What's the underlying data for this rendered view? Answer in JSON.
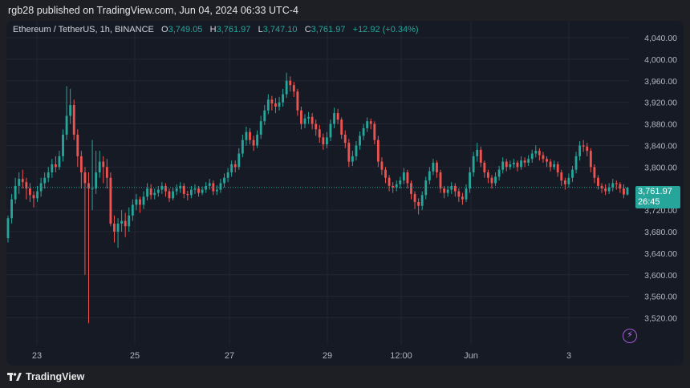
{
  "header": {
    "published": "rgb28 published on TradingView.com, Jun 04, 2024 06:33 UTC-4"
  },
  "legend": {
    "symbol": "Ethereum / TetherUS, 1h, BINANCE",
    "o_label": "O",
    "o_value": "3,749.05",
    "h_label": "H",
    "h_value": "3,761.97",
    "l_label": "L",
    "l_value": "3,747.10",
    "c_label": "C",
    "c_value": "3,761.97",
    "change": "+12.92 (+0.34%)"
  },
  "price_tag": {
    "price": "3,761.97",
    "countdown": "26:45"
  },
  "footer": {
    "brand": "TradingView"
  },
  "colors": {
    "up": "#26a69a",
    "down": "#ef5350",
    "background": "#161a25",
    "grid": "#242733"
  },
  "icons": {
    "alert": "lightning-icon",
    "logo": "tradingview-logo-icon"
  },
  "chart_data": {
    "type": "candlestick",
    "title": "Ethereum / TetherUS, 1h, BINANCE",
    "ylim": [
      3500,
      4040
    ],
    "y_ticks": [
      "4,040.00",
      "4,000.00",
      "3,960.00",
      "3,920.00",
      "3,880.00",
      "3,840.00",
      "3,800.00",
      "3,720.00",
      "3,680.00",
      "3,640.00",
      "3,600.00",
      "3,560.00",
      "3,520.00"
    ],
    "x_ticks": [
      "23",
      "25",
      "27",
      "29",
      "12:00",
      "Jun",
      "3"
    ],
    "last_price": 3761.97,
    "series": [
      {
        "name": "close",
        "values": [
          3670,
          3705,
          3740,
          3765,
          3778,
          3772,
          3760,
          3748,
          3742,
          3755,
          3770,
          3780,
          3790,
          3805,
          3800,
          3820,
          3860,
          3895,
          3915,
          3860,
          3820,
          3790,
          3770,
          3760,
          3760,
          3790,
          3810,
          3800,
          3780,
          3695,
          3680,
          3695,
          3700,
          3690,
          3710,
          3730,
          3740,
          3730,
          3745,
          3760,
          3748,
          3752,
          3758,
          3765,
          3755,
          3742,
          3755,
          3760,
          3765,
          3750,
          3748,
          3758,
          3760,
          3752,
          3758,
          3765,
          3770,
          3755,
          3758,
          3770,
          3780,
          3790,
          3805,
          3800,
          3825,
          3850,
          3865,
          3850,
          3840,
          3860,
          3885,
          3905,
          3925,
          3918,
          3912,
          3920,
          3935,
          3960,
          3952,
          3940,
          3905,
          3880,
          3890,
          3893,
          3880,
          3870,
          3855,
          3842,
          3855,
          3880,
          3900,
          3888,
          3860,
          3845,
          3810,
          3820,
          3840,
          3858,
          3872,
          3885,
          3880,
          3850,
          3810,
          3795,
          3780,
          3765,
          3762,
          3768,
          3775,
          3790,
          3770,
          3750,
          3735,
          3728,
          3748,
          3775,
          3792,
          3808,
          3790,
          3760,
          3752,
          3758,
          3765,
          3755,
          3745,
          3740,
          3760,
          3790,
          3820,
          3832,
          3808,
          3790,
          3780,
          3770,
          3782,
          3795,
          3810,
          3800,
          3805,
          3808,
          3800,
          3812,
          3808,
          3815,
          3825,
          3830,
          3822,
          3815,
          3810,
          3800,
          3805,
          3790,
          3775,
          3768,
          3780,
          3795,
          3820,
          3840,
          3838,
          3830,
          3800,
          3780,
          3765,
          3760,
          3755,
          3762,
          3770,
          3768,
          3760,
          3762
        ]
      }
    ],
    "candles": [
      [
        3668,
        3705,
        3660,
        3710
      ],
      [
        3705,
        3740,
        3695,
        3750
      ],
      [
        3740,
        3765,
        3732,
        3780
      ],
      [
        3765,
        3778,
        3750,
        3790
      ],
      [
        3778,
        3772,
        3760,
        3795
      ],
      [
        3772,
        3760,
        3740,
        3780
      ],
      [
        3760,
        3748,
        3735,
        3770
      ],
      [
        3748,
        3742,
        3725,
        3755
      ],
      [
        3742,
        3755,
        3735,
        3765
      ],
      [
        3755,
        3770,
        3745,
        3780
      ],
      [
        3770,
        3780,
        3760,
        3790
      ],
      [
        3780,
        3790,
        3772,
        3800
      ],
      [
        3790,
        3805,
        3780,
        3815
      ],
      [
        3805,
        3800,
        3790,
        3820
      ],
      [
        3800,
        3820,
        3795,
        3830
      ],
      [
        3820,
        3860,
        3810,
        3870
      ],
      [
        3860,
        3895,
        3850,
        3950
      ],
      [
        3895,
        3915,
        3880,
        3945
      ],
      [
        3915,
        3860,
        3850,
        3925
      ],
      [
        3860,
        3820,
        3800,
        3870
      ],
      [
        3820,
        3790,
        3760,
        3830
      ],
      [
        3790,
        3770,
        3600,
        3800
      ],
      [
        3770,
        3760,
        3510,
        3790
      ],
      [
        3760,
        3760,
        3720,
        3850
      ],
      [
        3760,
        3790,
        3750,
        3830
      ],
      [
        3790,
        3810,
        3780,
        3830
      ],
      [
        3810,
        3800,
        3770,
        3820
      ],
      [
        3800,
        3780,
        3760,
        3815
      ],
      [
        3780,
        3695,
        3690,
        3790
      ],
      [
        3695,
        3680,
        3660,
        3710
      ],
      [
        3680,
        3695,
        3650,
        3705
      ],
      [
        3695,
        3700,
        3680,
        3720
      ],
      [
        3700,
        3690,
        3670,
        3715
      ],
      [
        3690,
        3710,
        3680,
        3725
      ],
      [
        3710,
        3730,
        3700,
        3740
      ],
      [
        3730,
        3740,
        3720,
        3750
      ],
      [
        3740,
        3730,
        3715,
        3745
      ],
      [
        3730,
        3745,
        3722,
        3755
      ],
      [
        3745,
        3760,
        3738,
        3770
      ],
      [
        3760,
        3748,
        3740,
        3768
      ],
      [
        3748,
        3752,
        3740,
        3760
      ],
      [
        3752,
        3758,
        3745,
        3765
      ],
      [
        3758,
        3765,
        3750,
        3772
      ],
      [
        3765,
        3755,
        3745,
        3770
      ],
      [
        3755,
        3742,
        3735,
        3760
      ],
      [
        3742,
        3755,
        3738,
        3762
      ],
      [
        3755,
        3760,
        3748,
        3768
      ],
      [
        3760,
        3765,
        3752,
        3772
      ],
      [
        3765,
        3750,
        3742,
        3770
      ],
      [
        3750,
        3748,
        3738,
        3756
      ],
      [
        3748,
        3758,
        3742,
        3765
      ],
      [
        3758,
        3760,
        3750,
        3768
      ],
      [
        3760,
        3752,
        3745,
        3765
      ],
      [
        3752,
        3758,
        3748,
        3764
      ],
      [
        3758,
        3765,
        3752,
        3772
      ],
      [
        3765,
        3770,
        3758,
        3778
      ],
      [
        3770,
        3755,
        3748,
        3775
      ],
      [
        3755,
        3758,
        3748,
        3766
      ],
      [
        3758,
        3770,
        3752,
        3778
      ],
      [
        3770,
        3780,
        3762,
        3788
      ],
      [
        3780,
        3790,
        3772,
        3798
      ],
      [
        3790,
        3805,
        3782,
        3812
      ],
      [
        3805,
        3800,
        3790,
        3812
      ],
      [
        3800,
        3825,
        3795,
        3835
      ],
      [
        3825,
        3850,
        3818,
        3860
      ],
      [
        3850,
        3865,
        3840,
        3875
      ],
      [
        3865,
        3850,
        3842,
        3872
      ],
      [
        3850,
        3840,
        3830,
        3858
      ],
      [
        3840,
        3860,
        3835,
        3868
      ],
      [
        3860,
        3885,
        3852,
        3895
      ],
      [
        3885,
        3905,
        3878,
        3915
      ],
      [
        3905,
        3925,
        3898,
        3935
      ],
      [
        3925,
        3918,
        3905,
        3932
      ],
      [
        3918,
        3912,
        3900,
        3928
      ],
      [
        3912,
        3920,
        3905,
        3930
      ],
      [
        3920,
        3935,
        3912,
        3945
      ],
      [
        3935,
        3960,
        3928,
        3975
      ],
      [
        3960,
        3952,
        3940,
        3968
      ],
      [
        3952,
        3940,
        3930,
        3958
      ],
      [
        3940,
        3905,
        3895,
        3945
      ],
      [
        3905,
        3880,
        3870,
        3912
      ],
      [
        3880,
        3890,
        3872,
        3898
      ],
      [
        3890,
        3893,
        3880,
        3902
      ],
      [
        3893,
        3880,
        3870,
        3900
      ],
      [
        3880,
        3870,
        3858,
        3888
      ],
      [
        3870,
        3855,
        3845,
        3878
      ],
      [
        3855,
        3842,
        3832,
        3862
      ],
      [
        3842,
        3855,
        3835,
        3865
      ],
      [
        3855,
        3880,
        3848,
        3888
      ],
      [
        3880,
        3900,
        3872,
        3910
      ],
      [
        3900,
        3888,
        3880,
        3908
      ],
      [
        3888,
        3860,
        3852,
        3892
      ],
      [
        3860,
        3845,
        3835,
        3868
      ],
      [
        3845,
        3810,
        3800,
        3852
      ],
      [
        3810,
        3820,
        3802,
        3830
      ],
      [
        3820,
        3840,
        3812,
        3848
      ],
      [
        3840,
        3858,
        3832,
        3866
      ],
      [
        3858,
        3872,
        3850,
        3880
      ],
      [
        3872,
        3885,
        3865,
        3892
      ],
      [
        3885,
        3880,
        3870,
        3890
      ],
      [
        3880,
        3850,
        3842,
        3885
      ],
      [
        3850,
        3810,
        3800,
        3858
      ],
      [
        3810,
        3795,
        3785,
        3818
      ],
      [
        3795,
        3780,
        3770,
        3800
      ],
      [
        3780,
        3765,
        3755,
        3785
      ],
      [
        3765,
        3762,
        3752,
        3772
      ],
      [
        3762,
        3768,
        3755,
        3775
      ],
      [
        3768,
        3775,
        3760,
        3782
      ],
      [
        3775,
        3790,
        3768,
        3798
      ],
      [
        3790,
        3770,
        3760,
        3795
      ],
      [
        3770,
        3750,
        3740,
        3775
      ],
      [
        3750,
        3735,
        3722,
        3755
      ],
      [
        3735,
        3728,
        3712,
        3742
      ],
      [
        3728,
        3748,
        3720,
        3755
      ],
      [
        3748,
        3775,
        3740,
        3782
      ],
      [
        3775,
        3792,
        3768,
        3800
      ],
      [
        3792,
        3808,
        3785,
        3815
      ],
      [
        3808,
        3790,
        3780,
        3812
      ],
      [
        3790,
        3760,
        3752,
        3795
      ],
      [
        3760,
        3752,
        3742,
        3765
      ],
      [
        3752,
        3758,
        3745,
        3765
      ],
      [
        3758,
        3765,
        3750,
        3772
      ],
      [
        3765,
        3755,
        3745,
        3770
      ],
      [
        3755,
        3745,
        3735,
        3760
      ],
      [
        3745,
        3740,
        3730,
        3752
      ],
      [
        3740,
        3760,
        3735,
        3768
      ],
      [
        3760,
        3790,
        3752,
        3800
      ],
      [
        3790,
        3820,
        3782,
        3828
      ],
      [
        3820,
        3832,
        3810,
        3845
      ],
      [
        3832,
        3808,
        3800,
        3838
      ],
      [
        3808,
        3790,
        3780,
        3812
      ],
      [
        3790,
        3780,
        3770,
        3795
      ],
      [
        3780,
        3770,
        3760,
        3785
      ],
      [
        3770,
        3782,
        3765,
        3790
      ],
      [
        3782,
        3795,
        3775,
        3802
      ],
      [
        3795,
        3810,
        3788,
        3818
      ],
      [
        3810,
        3800,
        3792,
        3815
      ],
      [
        3800,
        3805,
        3795,
        3812
      ],
      [
        3805,
        3808,
        3798,
        3815
      ],
      [
        3808,
        3800,
        3792,
        3812
      ],
      [
        3800,
        3812,
        3795,
        3820
      ],
      [
        3812,
        3808,
        3800,
        3818
      ],
      [
        3808,
        3815,
        3802,
        3822
      ],
      [
        3815,
        3825,
        3808,
        3832
      ],
      [
        3825,
        3830,
        3818,
        3840
      ],
      [
        3830,
        3822,
        3812,
        3835
      ],
      [
        3822,
        3815,
        3808,
        3828
      ],
      [
        3815,
        3810,
        3800,
        3820
      ],
      [
        3810,
        3800,
        3792,
        3815
      ],
      [
        3800,
        3805,
        3795,
        3812
      ],
      [
        3805,
        3790,
        3782,
        3810
      ],
      [
        3790,
        3775,
        3765,
        3795
      ],
      [
        3775,
        3768,
        3758,
        3780
      ],
      [
        3768,
        3780,
        3762,
        3788
      ],
      [
        3780,
        3795,
        3772,
        3802
      ],
      [
        3795,
        3820,
        3788,
        3828
      ],
      [
        3820,
        3840,
        3812,
        3848
      ],
      [
        3840,
        3838,
        3828,
        3850
      ],
      [
        3838,
        3830,
        3820,
        3845
      ],
      [
        3830,
        3800,
        3790,
        3835
      ],
      [
        3800,
        3780,
        3770,
        3805
      ],
      [
        3780,
        3765,
        3758,
        3785
      ],
      [
        3765,
        3760,
        3752,
        3770
      ],
      [
        3760,
        3755,
        3748,
        3768
      ],
      [
        3755,
        3762,
        3750,
        3770
      ],
      [
        3762,
        3770,
        3755,
        3778
      ],
      [
        3770,
        3768,
        3758,
        3775
      ],
      [
        3768,
        3760,
        3752,
        3772
      ],
      [
        3760,
        3749,
        3742,
        3768
      ],
      [
        3749,
        3762,
        3747,
        3762
      ]
    ]
  }
}
